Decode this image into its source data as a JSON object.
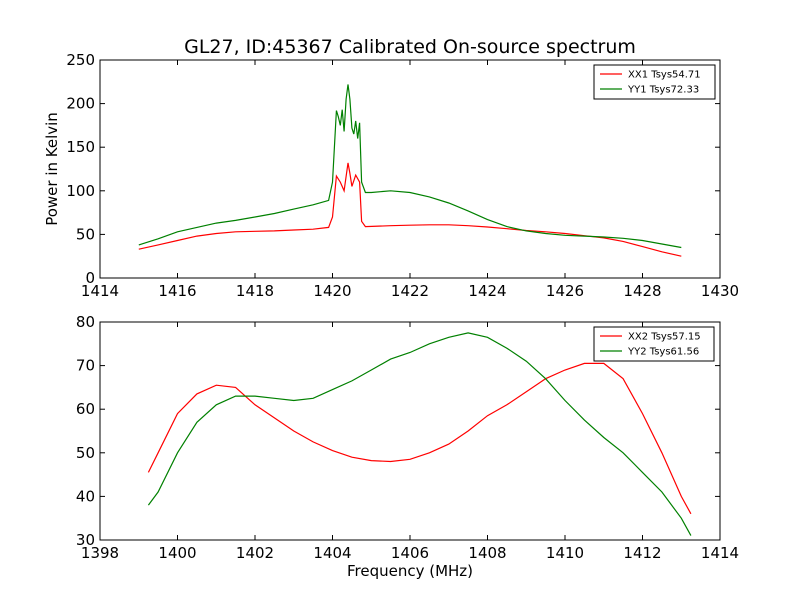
{
  "chart_data": [
    {
      "type": "line",
      "title": "GL27, ID:45367 Calibrated On-source spectrum",
      "xlabel": "",
      "ylabel": "Power in Kelvin",
      "xlim": [
        1414,
        1430
      ],
      "ylim": [
        0,
        250
      ],
      "xticks": [
        "1414",
        "1416",
        "1418",
        "1420",
        "1422",
        "1424",
        "1426",
        "1428",
        "1430"
      ],
      "yticks": [
        "0",
        "50",
        "100",
        "150",
        "200",
        "250"
      ],
      "grid": false,
      "legend_position": "top-right",
      "series": [
        {
          "name": "XX1 Tsys54.71",
          "color": "#ff0000",
          "points": [
            [
              1415.0,
              33
            ],
            [
              1415.5,
              38
            ],
            [
              1416.0,
              43
            ],
            [
              1416.5,
              48
            ],
            [
              1417.0,
              51
            ],
            [
              1417.5,
              53
            ],
            [
              1418.0,
              53.5
            ],
            [
              1418.5,
              54
            ],
            [
              1419.0,
              55
            ],
            [
              1419.5,
              56
            ],
            [
              1419.9,
              58
            ],
            [
              1420.0,
              70
            ],
            [
              1420.1,
              117
            ],
            [
              1420.2,
              110
            ],
            [
              1420.3,
              100
            ],
            [
              1420.4,
              132
            ],
            [
              1420.45,
              120
            ],
            [
              1420.5,
              105
            ],
            [
              1420.6,
              118
            ],
            [
              1420.7,
              110
            ],
            [
              1420.75,
              65
            ],
            [
              1420.85,
              59
            ],
            [
              1421.5,
              60
            ],
            [
              1422.0,
              60.5
            ],
            [
              1422.5,
              61
            ],
            [
              1423.0,
              61
            ],
            [
              1423.5,
              60
            ],
            [
              1424.0,
              58.5
            ],
            [
              1424.5,
              56.5
            ],
            [
              1425.0,
              54.5
            ],
            [
              1425.5,
              53
            ],
            [
              1426.0,
              51
            ],
            [
              1426.5,
              48.5
            ],
            [
              1427.0,
              46
            ],
            [
              1427.5,
              42
            ],
            [
              1428.0,
              36
            ],
            [
              1428.5,
              30
            ],
            [
              1429.0,
              25
            ]
          ]
        },
        {
          "name": "YY1 Tsys72.33",
          "color": "#008000",
          "points": [
            [
              1415.0,
              38
            ],
            [
              1415.5,
              45
            ],
            [
              1416.0,
              53
            ],
            [
              1416.5,
              58
            ],
            [
              1417.0,
              63
            ],
            [
              1417.5,
              66
            ],
            [
              1418.0,
              70
            ],
            [
              1418.5,
              74
            ],
            [
              1419.0,
              79
            ],
            [
              1419.5,
              84
            ],
            [
              1419.9,
              89
            ],
            [
              1420.0,
              110
            ],
            [
              1420.1,
              192
            ],
            [
              1420.15,
              185
            ],
            [
              1420.2,
              175
            ],
            [
              1420.25,
              193
            ],
            [
              1420.3,
              168
            ],
            [
              1420.35,
              205
            ],
            [
              1420.4,
              222
            ],
            [
              1420.45,
              205
            ],
            [
              1420.5,
              172
            ],
            [
              1420.55,
              165
            ],
            [
              1420.6,
              180
            ],
            [
              1420.65,
              160
            ],
            [
              1420.7,
              178
            ],
            [
              1420.75,
              110
            ],
            [
              1420.85,
              98
            ],
            [
              1421.0,
              98
            ],
            [
              1421.5,
              100
            ],
            [
              1422.0,
              98
            ],
            [
              1422.5,
              93
            ],
            [
              1423.0,
              86
            ],
            [
              1423.5,
              77
            ],
            [
              1424.0,
              67
            ],
            [
              1424.5,
              59
            ],
            [
              1425.0,
              54
            ],
            [
              1425.5,
              51
            ],
            [
              1426.0,
              49
            ],
            [
              1426.5,
              48
            ],
            [
              1427.0,
              47
            ],
            [
              1427.5,
              45.5
            ],
            [
              1428.0,
              43
            ],
            [
              1428.5,
              39
            ],
            [
              1429.0,
              35
            ]
          ]
        }
      ]
    },
    {
      "type": "line",
      "title": "",
      "xlabel": "Frequency (MHz)",
      "ylabel": "",
      "xlim": [
        1398,
        1414
      ],
      "ylim": [
        30,
        80
      ],
      "xticks": [
        "1398",
        "1400",
        "1402",
        "1404",
        "1406",
        "1408",
        "1410",
        "1412",
        "1414"
      ],
      "yticks": [
        "30",
        "40",
        "50",
        "60",
        "70",
        "80"
      ],
      "grid": false,
      "legend_position": "top-right",
      "series": [
        {
          "name": "XX2 Tsys57.15",
          "color": "#ff0000",
          "points": [
            [
              1399.25,
              45.5
            ],
            [
              1399.5,
              50
            ],
            [
              1400.0,
              59
            ],
            [
              1400.5,
              63.5
            ],
            [
              1401.0,
              65.5
            ],
            [
              1401.5,
              65
            ],
            [
              1402.0,
              61
            ],
            [
              1402.5,
              58
            ],
            [
              1403.0,
              55
            ],
            [
              1403.5,
              52.5
            ],
            [
              1404.0,
              50.5
            ],
            [
              1404.5,
              49
            ],
            [
              1405.0,
              48.2
            ],
            [
              1405.5,
              48
            ],
            [
              1406.0,
              48.5
            ],
            [
              1406.5,
              50
            ],
            [
              1407.0,
              52
            ],
            [
              1407.5,
              55
            ],
            [
              1408.0,
              58.5
            ],
            [
              1408.5,
              61
            ],
            [
              1409.0,
              64
            ],
            [
              1409.5,
              67
            ],
            [
              1410.0,
              69
            ],
            [
              1410.5,
              70.5
            ],
            [
              1411.0,
              70.5
            ],
            [
              1411.5,
              67
            ],
            [
              1412.0,
              59
            ],
            [
              1412.5,
              50
            ],
            [
              1413.0,
              40
            ],
            [
              1413.25,
              36
            ]
          ]
        },
        {
          "name": "YY2 Tsys61.56",
          "color": "#008000",
          "points": [
            [
              1399.25,
              38
            ],
            [
              1399.5,
              41
            ],
            [
              1400.0,
              50
            ],
            [
              1400.5,
              57
            ],
            [
              1401.0,
              61
            ],
            [
              1401.5,
              63
            ],
            [
              1402.0,
              63
            ],
            [
              1402.5,
              62.5
            ],
            [
              1403.0,
              62
            ],
            [
              1403.5,
              62.5
            ],
            [
              1404.0,
              64.5
            ],
            [
              1404.5,
              66.5
            ],
            [
              1405.0,
              69
            ],
            [
              1405.5,
              71.5
            ],
            [
              1406.0,
              73
            ],
            [
              1406.5,
              75
            ],
            [
              1407.0,
              76.5
            ],
            [
              1407.5,
              77.5
            ],
            [
              1408.0,
              76.5
            ],
            [
              1408.5,
              74
            ],
            [
              1409.0,
              71
            ],
            [
              1409.5,
              67
            ],
            [
              1410.0,
              62
            ],
            [
              1410.5,
              57.5
            ],
            [
              1411.0,
              53.5
            ],
            [
              1411.5,
              50
            ],
            [
              1412.0,
              45.5
            ],
            [
              1412.5,
              41
            ],
            [
              1413.0,
              35
            ],
            [
              1413.25,
              31
            ]
          ]
        }
      ]
    }
  ]
}
